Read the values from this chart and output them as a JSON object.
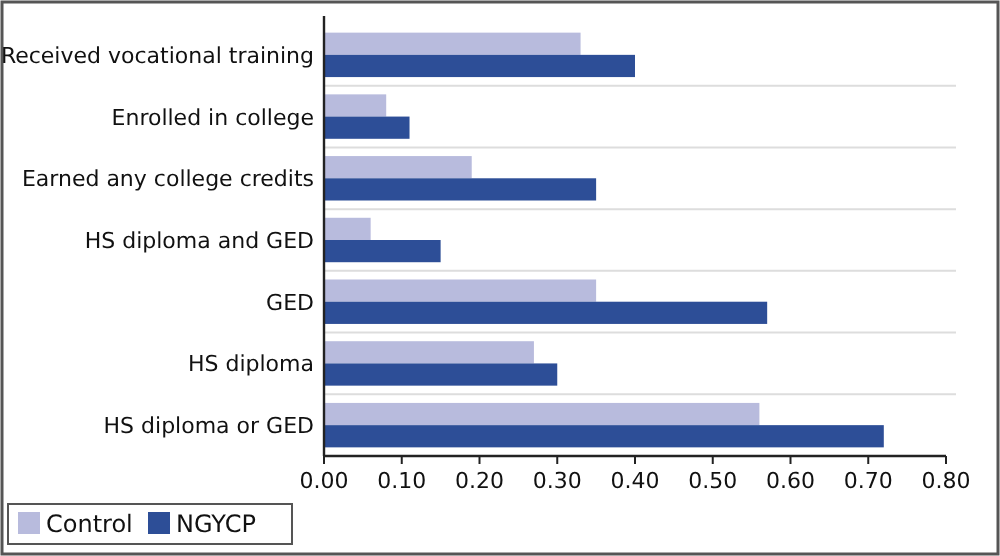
{
  "chart_data": {
    "type": "bar",
    "orientation": "horizontal",
    "categories": [
      "Received vocational training",
      "Enrolled in college",
      "Earned any college credits",
      "HS diploma and GED",
      "GED",
      "HS diploma",
      "HS diploma or GED"
    ],
    "series": [
      {
        "name": "Control",
        "color": "#b8bbdd",
        "values": [
          0.33,
          0.08,
          0.19,
          0.06,
          0.35,
          0.27,
          0.56
        ]
      },
      {
        "name": "NGYCP",
        "color": "#2d4e97",
        "values": [
          0.4,
          0.11,
          0.35,
          0.15,
          0.57,
          0.3,
          0.72
        ]
      }
    ],
    "xlim": [
      0,
      0.8
    ],
    "xticks": [
      {
        "value": 0,
        "label": "0.00"
      },
      {
        "value": 0.1,
        "label": "0.10"
      },
      {
        "value": 0.2,
        "label": "0.20"
      },
      {
        "value": 0.3,
        "label": "0.30"
      },
      {
        "value": 0.4,
        "label": "0.40"
      },
      {
        "value": 0.5,
        "label": "0.50"
      },
      {
        "value": 0.6,
        "label": "0.60"
      },
      {
        "value": 0.7,
        "label": "0.70"
      },
      {
        "value": 0.8,
        "label": "0.80"
      }
    ],
    "grid": "y",
    "legend": "bottom left"
  }
}
